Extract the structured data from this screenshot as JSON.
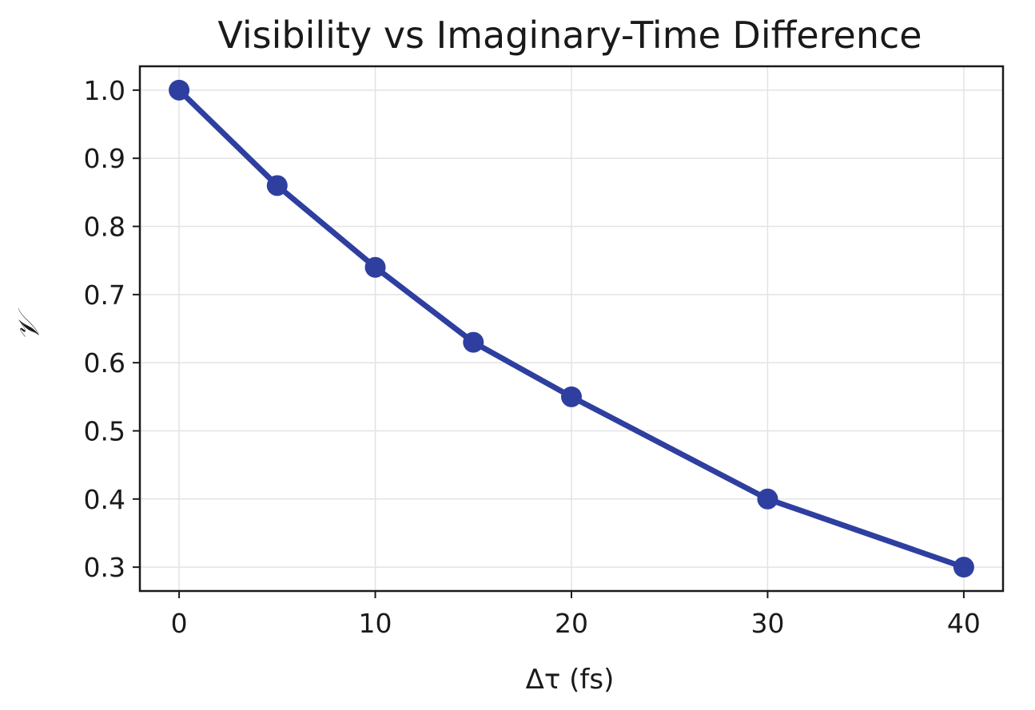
{
  "chart_data": {
    "type": "line",
    "title": "Visibility vs Imaginary-Time Difference",
    "xlabel": "Δτ (fs)",
    "ylabel": "𝒱",
    "x": [
      0,
      5,
      10,
      15,
      20,
      30,
      40
    ],
    "series": [
      {
        "values": [
          1.0,
          0.86,
          0.74,
          0.63,
          0.55,
          0.4,
          0.3
        ],
        "color": "#2e3fa0",
        "marker": "circle"
      }
    ],
    "xlim": [
      -2,
      42
    ],
    "ylim": [
      0.265,
      1.035
    ],
    "xticks": [
      0,
      10,
      20,
      30,
      40
    ],
    "xtick_labels": [
      "0",
      "10",
      "20",
      "30",
      "40"
    ],
    "yticks": [
      0.3,
      0.4,
      0.5,
      0.6,
      0.7,
      0.8,
      0.9,
      1.0
    ],
    "ytick_labels": [
      "0.3",
      "0.4",
      "0.5",
      "0.6",
      "0.7",
      "0.8",
      "0.9",
      "1.0"
    ],
    "grid": true,
    "legend": "none"
  }
}
